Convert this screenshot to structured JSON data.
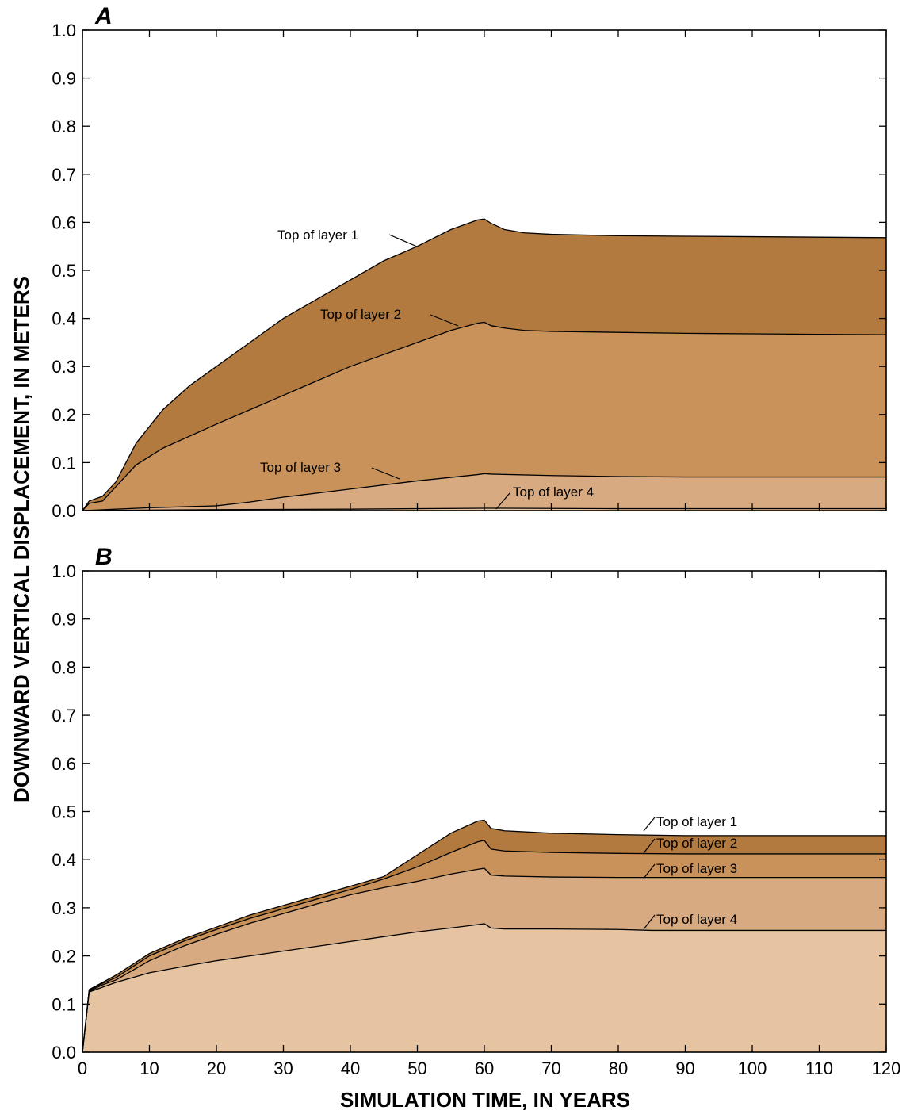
{
  "chart_data": {
    "type": "area",
    "xlabel": "SIMULATION TIME, IN YEARS",
    "ylabel": "DOWNWARD VERTICAL DISPLACEMENT, IN METERS",
    "xlim": [
      0,
      120
    ],
    "ylim": [
      0,
      1.0
    ],
    "x_ticks": [
      "0",
      "10",
      "20",
      "30",
      "40",
      "50",
      "60",
      "70",
      "80",
      "90",
      "100",
      "110",
      "120"
    ],
    "y_ticks": [
      "0.0",
      "0.1",
      "0.2",
      "0.3",
      "0.4",
      "0.5",
      "0.6",
      "0.7",
      "0.8",
      "0.9",
      "1.0"
    ],
    "grid": false,
    "colors": {
      "layer1": "#b27a3e",
      "layer2": "#c9925a",
      "layer3": "#d7aa82",
      "layer4": "#e6c4a2"
    },
    "panels": [
      {
        "label": "A",
        "series": [
          {
            "name": "Top of layer 1",
            "x": [
              0,
              1,
              3,
              5,
              8,
              12,
              16,
              20,
              25,
              30,
              35,
              40,
              45,
              50,
              55,
              59,
              60,
              61,
              63,
              66,
              70,
              80,
              90,
              100,
              110,
              120
            ],
            "values": [
              0,
              0.02,
              0.03,
              0.06,
              0.14,
              0.21,
              0.26,
              0.3,
              0.35,
              0.4,
              0.44,
              0.48,
              0.52,
              0.55,
              0.585,
              0.605,
              0.607,
              0.598,
              0.585,
              0.578,
              0.575,
              0.572,
              0.571,
              0.57,
              0.569,
              0.568
            ]
          },
          {
            "name": "Top of layer 2",
            "x": [
              0,
              1,
              3,
              5,
              8,
              12,
              16,
              20,
              25,
              30,
              35,
              40,
              45,
              50,
              55,
              59,
              60,
              61,
              63,
              66,
              70,
              80,
              90,
              100,
              110,
              120
            ],
            "values": [
              0,
              0.015,
              0.02,
              0.05,
              0.095,
              0.13,
              0.155,
              0.18,
              0.21,
              0.24,
              0.27,
              0.3,
              0.325,
              0.35,
              0.375,
              0.39,
              0.392,
              0.385,
              0.38,
              0.375,
              0.373,
              0.371,
              0.369,
              0.368,
              0.367,
              0.366
            ]
          },
          {
            "name": "Top of layer 3",
            "x": [
              0,
              5,
              10,
              20,
              25,
              30,
              40,
              50,
              59,
              60,
              61,
              70,
              80,
              90,
              100,
              110,
              120
            ],
            "values": [
              0,
              0.003,
              0.006,
              0.01,
              0.018,
              0.028,
              0.045,
              0.062,
              0.075,
              0.077,
              0.076,
              0.073,
              0.071,
              0.07,
              0.07,
              0.07,
              0.07
            ]
          },
          {
            "name": "Top of layer 4",
            "x": [
              0,
              20,
              40,
              60,
              61,
              80,
              100,
              120
            ],
            "values": [
              0,
              0.002,
              0.003,
              0.005,
              0.005,
              0.004,
              0.004,
              0.004
            ]
          }
        ],
        "annotations": [
          "Top of layer 1",
          "Top of layer 2",
          "Top of layer 3",
          "Top of layer 4"
        ]
      },
      {
        "label": "B",
        "series": [
          {
            "name": "Top of layer 1",
            "x": [
              0,
              1,
              3,
              5,
              10,
              15,
              20,
              25,
              30,
              35,
              40,
              45,
              50,
              55,
              59,
              60,
              61,
              63,
              70,
              80,
              90,
              100,
              110,
              120
            ],
            "values": [
              0,
              0.13,
              0.145,
              0.16,
              0.205,
              0.235,
              0.26,
              0.285,
              0.305,
              0.325,
              0.345,
              0.365,
              0.41,
              0.455,
              0.48,
              0.482,
              0.465,
              0.46,
              0.455,
              0.452,
              0.45,
              0.45,
              0.45,
              0.45
            ]
          },
          {
            "name": "Top of layer 2",
            "x": [
              0,
              1,
              3,
              5,
              10,
              15,
              20,
              25,
              30,
              35,
              40,
              45,
              50,
              55,
              59,
              60,
              61,
              63,
              70,
              80,
              90,
              100,
              110,
              120
            ],
            "values": [
              0,
              0.128,
              0.143,
              0.155,
              0.2,
              0.23,
              0.255,
              0.278,
              0.298,
              0.318,
              0.338,
              0.36,
              0.385,
              0.415,
              0.437,
              0.44,
              0.422,
              0.418,
              0.415,
              0.413,
              0.412,
              0.412,
              0.412,
              0.412
            ]
          },
          {
            "name": "Top of layer 3",
            "x": [
              0,
              1,
              3,
              5,
              10,
              15,
              20,
              25,
              30,
              35,
              40,
              45,
              50,
              55,
              59,
              60,
              61,
              63,
              70,
              80,
              90,
              100,
              110,
              120
            ],
            "values": [
              0,
              0.126,
              0.14,
              0.15,
              0.19,
              0.22,
              0.245,
              0.268,
              0.288,
              0.308,
              0.327,
              0.342,
              0.355,
              0.37,
              0.38,
              0.382,
              0.368,
              0.366,
              0.364,
              0.363,
              0.363,
              0.363,
              0.363,
              0.363
            ]
          },
          {
            "name": "Top of layer 4",
            "x": [
              0,
              1,
              3,
              5,
              10,
              15,
              20,
              25,
              30,
              35,
              40,
              45,
              50,
              55,
              59,
              60,
              61,
              63,
              70,
              80,
              85,
              90,
              100,
              110,
              120
            ],
            "values": [
              0,
              0.125,
              0.135,
              0.145,
              0.165,
              0.178,
              0.19,
              0.2,
              0.21,
              0.22,
              0.23,
              0.24,
              0.25,
              0.258,
              0.265,
              0.267,
              0.258,
              0.256,
              0.256,
              0.255,
              0.253,
              0.253,
              0.253,
              0.253,
              0.253
            ]
          }
        ],
        "annotations": [
          "Top of layer 1",
          "Top of layer 2",
          "Top of layer 3",
          "Top of layer 4"
        ]
      }
    ]
  }
}
